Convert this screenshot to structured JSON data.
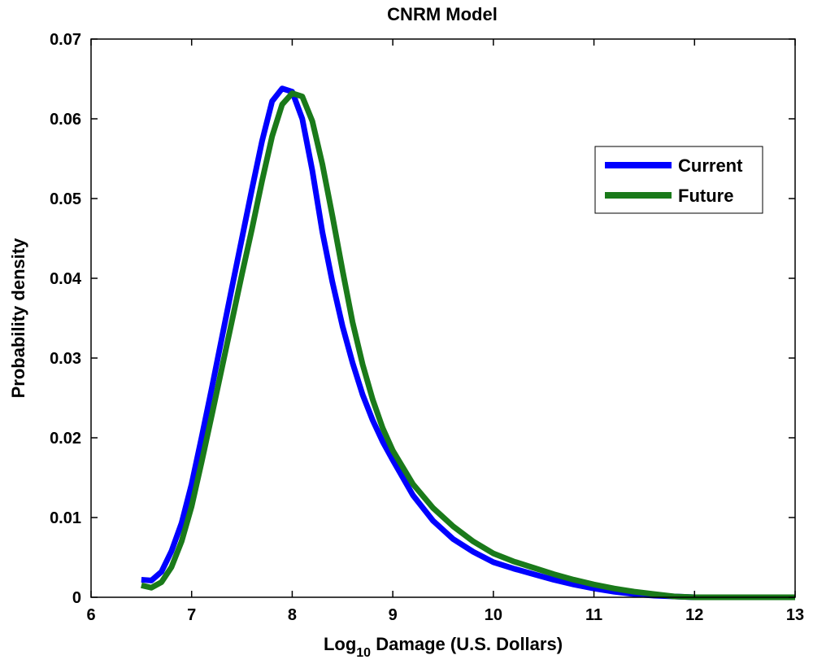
{
  "chart_data": {
    "type": "line",
    "title": "CNRM Model",
    "xlabel_main": "Log",
    "xlabel_sub": "10",
    "xlabel_rest": " Damage (U.S. Dollars)",
    "ylabel": "Probability density",
    "xlim": [
      6,
      13
    ],
    "ylim": [
      0,
      0.07
    ],
    "xticks": [
      6,
      7,
      8,
      9,
      10,
      11,
      12,
      13
    ],
    "yticks": [
      0,
      0.01,
      0.02,
      0.03,
      0.04,
      0.05,
      0.06,
      0.07
    ],
    "xtick_labels": [
      "6",
      "7",
      "8",
      "9",
      "10",
      "11",
      "12",
      "13"
    ],
    "ytick_labels": [
      "0",
      "0.01",
      "0.02",
      "0.03",
      "0.04",
      "0.05",
      "0.06",
      "0.07"
    ],
    "grid": false,
    "legend_position": "top-right",
    "series": [
      {
        "name": "Current",
        "color": "#0000ff",
        "x": [
          6.5,
          6.6,
          6.7,
          6.8,
          6.9,
          7.0,
          7.1,
          7.2,
          7.3,
          7.4,
          7.5,
          7.6,
          7.7,
          7.8,
          7.9,
          8.0,
          8.1,
          8.2,
          8.3,
          8.4,
          8.5,
          8.6,
          8.7,
          8.8,
          8.9,
          9.0,
          9.2,
          9.4,
          9.6,
          9.8,
          10.0,
          10.2,
          10.4,
          10.6,
          10.8,
          11.0,
          11.2,
          11.4,
          11.6,
          11.8,
          12.0,
          12.5,
          13.0
        ],
        "y": [
          0.0022,
          0.0021,
          0.0032,
          0.0058,
          0.0093,
          0.0142,
          0.0201,
          0.0262,
          0.0325,
          0.0388,
          0.045,
          0.0512,
          0.0572,
          0.0622,
          0.0638,
          0.0634,
          0.06,
          0.0535,
          0.0458,
          0.0395,
          0.034,
          0.0294,
          0.0254,
          0.0222,
          0.0195,
          0.0172,
          0.0128,
          0.0096,
          0.0073,
          0.0057,
          0.0044,
          0.0036,
          0.0029,
          0.0022,
          0.0016,
          0.0011,
          0.0007,
          0.0004,
          0.0002,
          0.0001,
          0.0,
          0.0,
          0.0
        ]
      },
      {
        "name": "Future",
        "color": "#1a7a1a",
        "x": [
          6.5,
          6.6,
          6.7,
          6.8,
          6.9,
          7.0,
          7.1,
          7.2,
          7.3,
          7.4,
          7.5,
          7.6,
          7.7,
          7.8,
          7.9,
          8.0,
          8.1,
          8.2,
          8.3,
          8.4,
          8.5,
          8.6,
          8.7,
          8.8,
          8.9,
          9.0,
          9.2,
          9.4,
          9.6,
          9.8,
          10.0,
          10.2,
          10.4,
          10.6,
          10.8,
          11.0,
          11.2,
          11.4,
          11.6,
          11.8,
          12.0,
          12.5,
          13.0
        ],
        "y": [
          0.0015,
          0.0012,
          0.0019,
          0.0038,
          0.007,
          0.0114,
          0.017,
          0.0228,
          0.0287,
          0.0346,
          0.0405,
          0.0462,
          0.0522,
          0.0578,
          0.0618,
          0.0632,
          0.0628,
          0.0597,
          0.0543,
          0.0478,
          0.041,
          0.0345,
          0.0292,
          0.0248,
          0.0212,
          0.0184,
          0.0142,
          0.0112,
          0.0089,
          0.007,
          0.0055,
          0.0045,
          0.0037,
          0.0029,
          0.0022,
          0.0016,
          0.0011,
          0.0007,
          0.0004,
          0.0001,
          0.0,
          0.0,
          0.0
        ]
      }
    ]
  }
}
